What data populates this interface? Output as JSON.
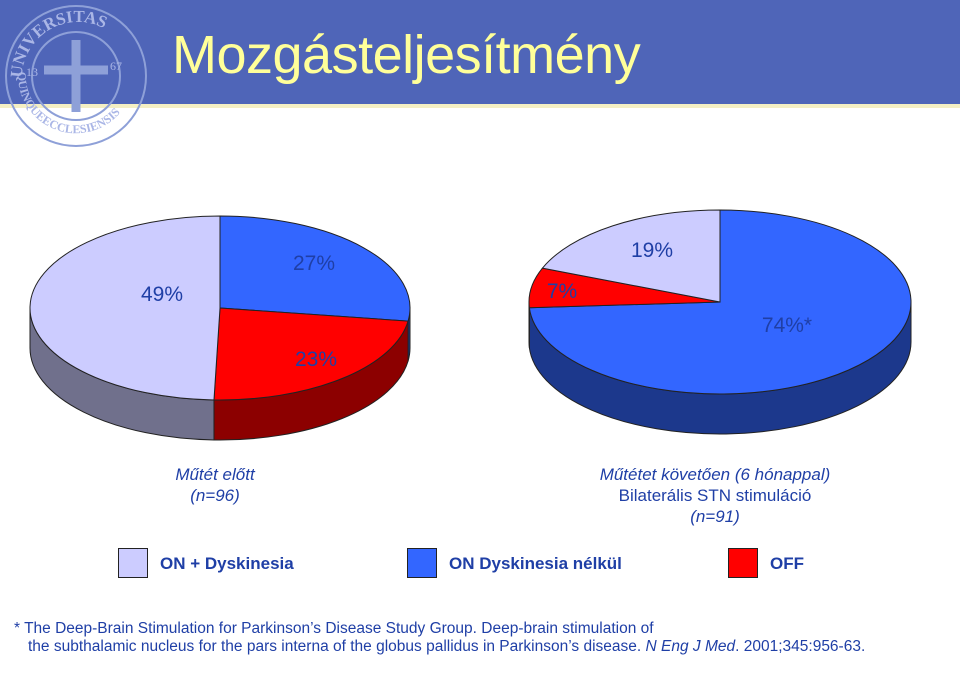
{
  "header": {
    "title": "Mozgásteljesítmény",
    "background_color": "#4f65b8",
    "title_color": "#ffff99"
  },
  "logo": {
    "type": "university-seal",
    "text_top": "UNIVERSITAS",
    "text_bottom": "QUINQUEECCLESIENSIS",
    "year_left": "13",
    "year_right": "67"
  },
  "colors": {
    "on_dyskinesia": "#ccccff",
    "on_no_dyskinesia": "#3366ff",
    "off": "#ff0000"
  },
  "chart_data": [
    {
      "type": "pie",
      "style": "3d",
      "caption_title": "Műtét előtt",
      "caption_n": "(n=96)",
      "categories": [
        "ON + Dyskinesia",
        "ON Dyskinesia nélkül",
        "OFF"
      ],
      "values": [
        49,
        27,
        23
      ],
      "labels": [
        "49%",
        "27%",
        "23%"
      ],
      "unit": "%"
    },
    {
      "type": "pie",
      "style": "3d",
      "caption_title": "Műtétet követően (6 hónappal)",
      "caption_subtitle": "Bilaterális STN stimuláció",
      "caption_n": "(n=91)",
      "categories": [
        "ON + Dyskinesia",
        "ON Dyskinesia nélkül",
        "OFF"
      ],
      "values": [
        19,
        74,
        7
      ],
      "labels": [
        "19%",
        "74%*",
        "7%"
      ],
      "unit": "%"
    }
  ],
  "legend": {
    "placement": "bottom",
    "items": [
      {
        "label": "ON + Dyskinesia",
        "color": "#ccccff"
      },
      {
        "label": "ON Dyskinesia nélkül",
        "color": "#3366ff"
      },
      {
        "label": "OFF",
        "color": "#ff0000"
      }
    ]
  },
  "footnote": {
    "marker": "*",
    "text_plain": "The Deep-Brain Stimulation for Parkinson’s Disease Study Group. Deep-brain stimulation of",
    "text_plain2": "the subthalamic nucleus for the pars interna of the globus pallidus in Parkinson’s disease.",
    "journal": "N Eng J Med",
    "citation": ". 2001;345:956-63."
  }
}
